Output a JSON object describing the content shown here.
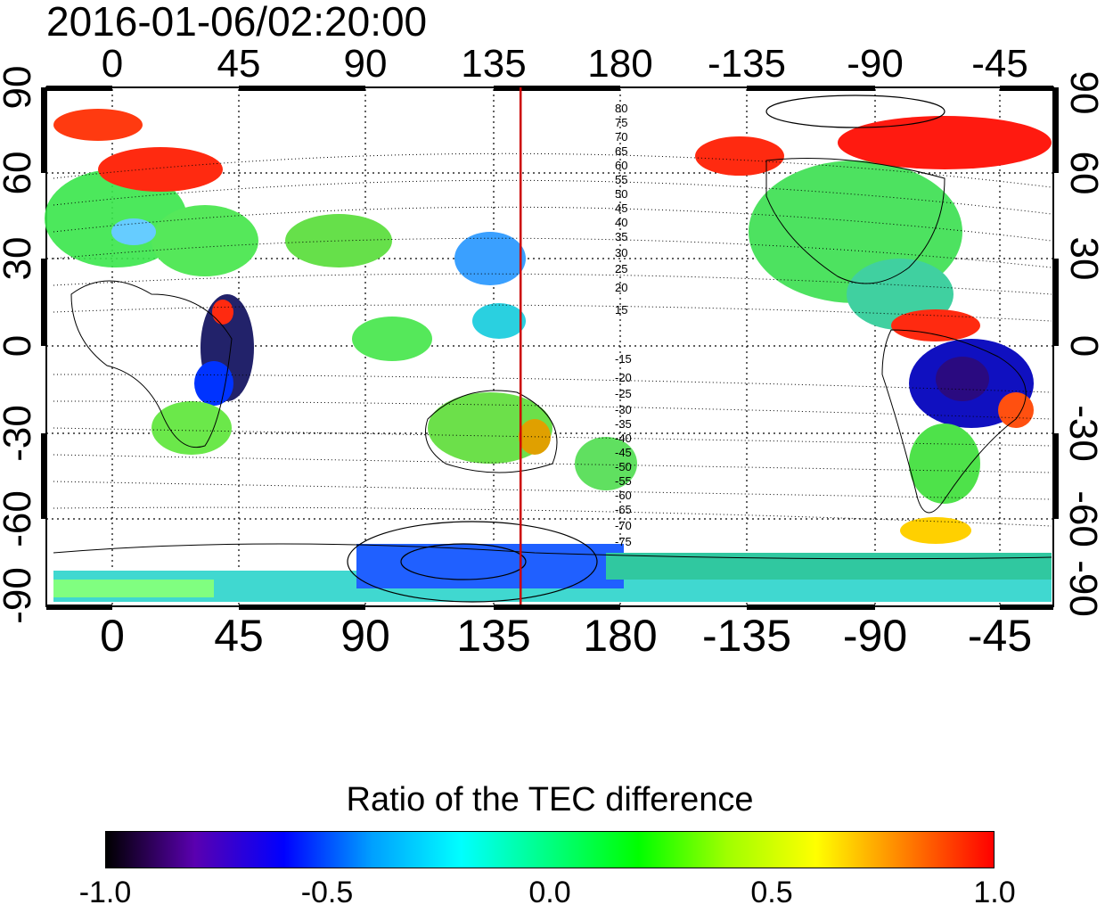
{
  "timestamp": "2016-01-06/02:20:00",
  "top_ticks": [
    "0",
    "45",
    "90",
    "135",
    "180",
    "-135",
    "-90",
    "-45"
  ],
  "bottom_ticks": [
    "0",
    "45",
    "90",
    "135",
    "180",
    "-135",
    "-90",
    "-45"
  ],
  "left_ticks": [
    "90",
    "60",
    "30",
    "0",
    "-30",
    "-60",
    "-90"
  ],
  "right_ticks": [
    "90",
    "60",
    "30",
    "0",
    "-30",
    "-60",
    "-90"
  ],
  "contour_labels": [
    "80",
    "75",
    "70",
    "65",
    "60",
    "55",
    "50",
    "45",
    "40",
    "35",
    "30",
    "25",
    "20",
    "15",
    "-15",
    "-20",
    "-25",
    "-30",
    "-35",
    "-40",
    "-45",
    "-50",
    "-55",
    "-60",
    "-65",
    "-70",
    "-75"
  ],
  "marker_longitude": 145,
  "colorbar": {
    "title": "Ratio of the TEC difference",
    "labels": [
      "-1.0",
      "-0.5",
      "0.0",
      "0.5",
      "1.0"
    ],
    "colors": [
      "#000000",
      "#5a00b0",
      "#0000ff",
      "#00a0ff",
      "#00ffff",
      "#00ff80",
      "#00ff00",
      "#a0ff00",
      "#ffff00",
      "#ff8000",
      "#ff0000"
    ]
  },
  "colors": {
    "marker_line": "#cc0000"
  }
}
